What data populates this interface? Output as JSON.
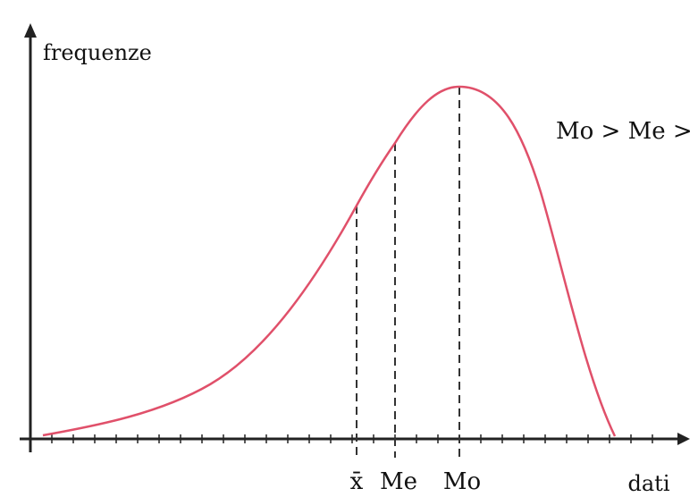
{
  "diagram": {
    "y_axis_label": "frequenze",
    "x_axis_label": "dati",
    "relation_label": "Mo > Me > x̄",
    "markers": {
      "mean": "x̄",
      "median": "Me",
      "mode": "Mo"
    },
    "curve_color": "#e0506a",
    "axis_color": "#222222",
    "guide_style": "dashed"
  }
}
